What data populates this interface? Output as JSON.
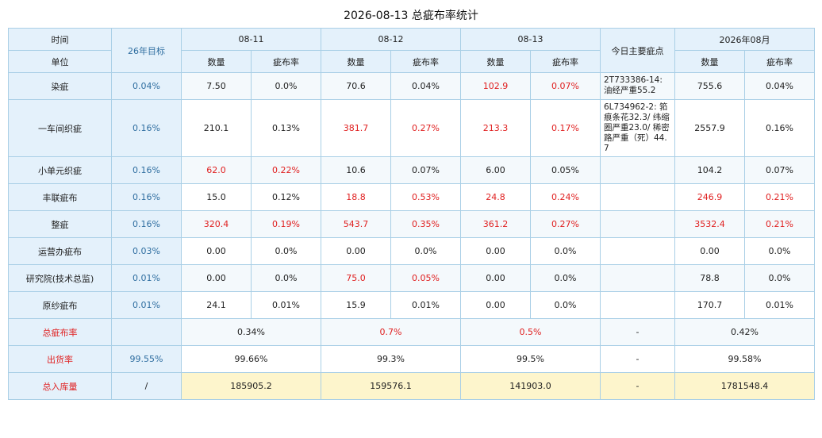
{
  "title": "2026-08-13 总疵布率统计",
  "header": {
    "time_label": "时间",
    "unit_label": "单位",
    "target_label": "26年目标",
    "dates": [
      "08-11",
      "08-12",
      "08-13"
    ],
    "notes_label": "今日主要疵点",
    "month_label": "2026年08月",
    "qty_label": "数量",
    "rate_label": "疵布率"
  },
  "rows": [
    {
      "name": "染疵",
      "target": "0.04%",
      "d1q": "7.50",
      "d1r": "0.0%",
      "d2q": "70.6",
      "d2r": "0.04%",
      "d3q": "102.9",
      "d3r": "0.07%",
      "note": "2T733386-14: 油经严重55.2",
      "mq": "755.6",
      "mr": "0.04%"
    },
    {
      "name": "一车间织疵",
      "target": "0.16%",
      "d1q": "210.1",
      "d1r": "0.13%",
      "d2q": "381.7",
      "d2r": "0.27%",
      "d3q": "213.3",
      "d3r": "0.17%",
      "note": "6L734962-2: 筘痕条花32.3/ 纬缩圈严重23.0/ 稀密路严重（死）44.7",
      "mq": "2557.9",
      "mr": "0.16%"
    },
    {
      "name": "小单元织疵",
      "target": "0.16%",
      "d1q": "62.0",
      "d1r": "0.22%",
      "d2q": "10.6",
      "d2r": "0.07%",
      "d3q": "6.00",
      "d3r": "0.05%",
      "note": "",
      "mq": "104.2",
      "mr": "0.07%"
    },
    {
      "name": "丰联疵布",
      "target": "0.16%",
      "d1q": "15.0",
      "d1r": "0.12%",
      "d2q": "18.8",
      "d2r": "0.53%",
      "d3q": "24.8",
      "d3r": "0.24%",
      "note": "",
      "mq": "246.9",
      "mr": "0.21%"
    },
    {
      "name": "整疵",
      "target": "0.16%",
      "d1q": "320.4",
      "d1r": "0.19%",
      "d2q": "543.7",
      "d2r": "0.35%",
      "d3q": "361.2",
      "d3r": "0.27%",
      "note": "",
      "mq": "3532.4",
      "mr": "0.21%"
    },
    {
      "name": "运营办疵布",
      "target": "0.03%",
      "d1q": "0.00",
      "d1r": "0.0%",
      "d2q": "0.00",
      "d2r": "0.0%",
      "d3q": "0.00",
      "d3r": "0.0%",
      "note": "",
      "mq": "0.00",
      "mr": "0.0%"
    },
    {
      "name": "研究院(技术总监)",
      "target": "0.01%",
      "d1q": "0.00",
      "d1r": "0.0%",
      "d2q": "75.0",
      "d2r": "0.05%",
      "d3q": "0.00",
      "d3r": "0.0%",
      "note": "",
      "mq": "78.8",
      "mr": "0.0%"
    },
    {
      "name": "原纱疵布",
      "target": "0.01%",
      "d1q": "24.1",
      "d1r": "0.01%",
      "d2q": "15.9",
      "d2r": "0.01%",
      "d3q": "0.00",
      "d3r": "0.0%",
      "note": "",
      "mq": "170.7",
      "mr": "0.01%"
    }
  ],
  "summary": {
    "total_rate": {
      "label": "总疵布率",
      "target": "",
      "d1": "0.34%",
      "d2": "0.7%",
      "d3": "0.5%",
      "note": "-",
      "month": "0.42%"
    },
    "ship_rate": {
      "label": "出货率",
      "target": "99.55%",
      "d1": "99.66%",
      "d2": "99.3%",
      "d3": "99.5%",
      "note": "-",
      "month": "99.58%"
    },
    "storage": {
      "label": "总入库量",
      "target": "/",
      "d1": "185905.2",
      "d2": "159576.1",
      "d3": "141903.0",
      "note": "-",
      "month": "1781548.4"
    }
  },
  "colors": {
    "header_bg": "#e4f1fb",
    "border": "#a9cfe6",
    "alert_red": "#e02020",
    "target_blue": "#2f6ea0",
    "storage_bg": "#fdf5cc"
  }
}
